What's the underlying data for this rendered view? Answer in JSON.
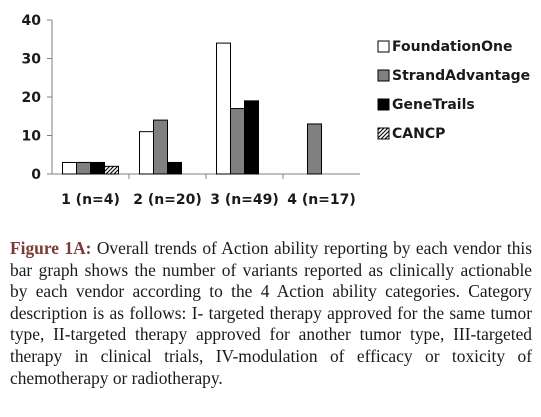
{
  "chart_data": {
    "type": "bar",
    "categories": [
      "1 (n=4)",
      "2 (n=20)",
      "3 (n=49)",
      "4 (n=17)"
    ],
    "series": [
      {
        "name": "FoundationOne",
        "values": [
          3,
          11,
          34,
          0
        ],
        "fill": "#ffffff",
        "pattern": "none"
      },
      {
        "name": "StrandAdvantage",
        "values": [
          3,
          14,
          17,
          13
        ],
        "fill": "#808080",
        "pattern": "none"
      },
      {
        "name": "GeneTrails",
        "values": [
          3,
          3,
          19,
          0
        ],
        "fill": "#000000",
        "pattern": "none"
      },
      {
        "name": "CANCP",
        "values": [
          2,
          0,
          0,
          0
        ],
        "fill": "#ffffff",
        "pattern": "diagonal"
      }
    ],
    "yticks": [
      0,
      10,
      20,
      30,
      40
    ],
    "ylim": [
      0,
      40
    ],
    "grid": false,
    "legend": "right",
    "title": "",
    "xlabel": "",
    "ylabel": ""
  },
  "caption": {
    "label": "Figure 1A:",
    "text": " Overall trends of Action ability reporting by each vendor this bar graph shows the number of variants reported as clinically actionable by each vendor according to the 4 Action ability categories. Category description is as follows: I- targeted therapy approved for the same tumor type, II-targeted therapy approved for another tumor type, III-targeted therapy in clinical trials, IV-modulation of efficacy or toxicity of chemotherapy or radiotherapy."
  }
}
